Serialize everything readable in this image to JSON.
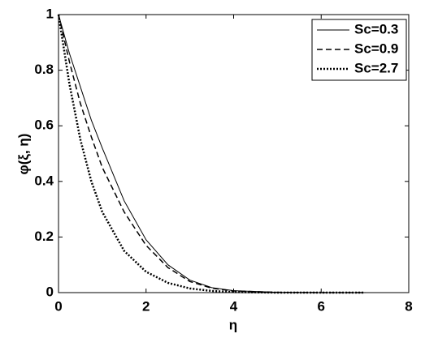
{
  "chart_data": {
    "type": "line",
    "xlabel": "η",
    "ylabel": "φ(ξ, η)",
    "x": [
      0,
      0.25,
      0.5,
      0.75,
      1,
      1.5,
      2,
      2.5,
      3,
      3.5,
      4,
      5,
      6,
      7
    ],
    "series": [
      {
        "name": "Sc=0.3",
        "color": "#000000",
        "linestyle": "solid",
        "values": [
          1,
          0.86,
          0.74,
          0.62,
          0.52,
          0.33,
          0.19,
          0.1,
          0.045,
          0.018,
          0.007,
          0.001,
          0,
          0
        ]
      },
      {
        "name": "Sc=0.9",
        "color": "#000000",
        "linestyle": "dashed",
        "values": [
          1,
          0.83,
          0.68,
          0.56,
          0.45,
          0.29,
          0.17,
          0.09,
          0.04,
          0.016,
          0.006,
          0.001,
          0,
          0
        ]
      },
      {
        "name": "Sc=2.7",
        "color": "#000000",
        "linestyle": "dotted",
        "values": [
          1,
          0.75,
          0.55,
          0.4,
          0.29,
          0.15,
          0.075,
          0.035,
          0.015,
          0.006,
          0.002,
          0,
          0,
          0
        ]
      }
    ],
    "xlim": [
      0,
      8
    ],
    "xticks": [
      0,
      2,
      4,
      6,
      8
    ],
    "ylim": [
      0,
      1
    ],
    "yticks": [
      0,
      0.2,
      0.4,
      0.6,
      0.8,
      1
    ],
    "grid": false,
    "legend": "northeast"
  }
}
